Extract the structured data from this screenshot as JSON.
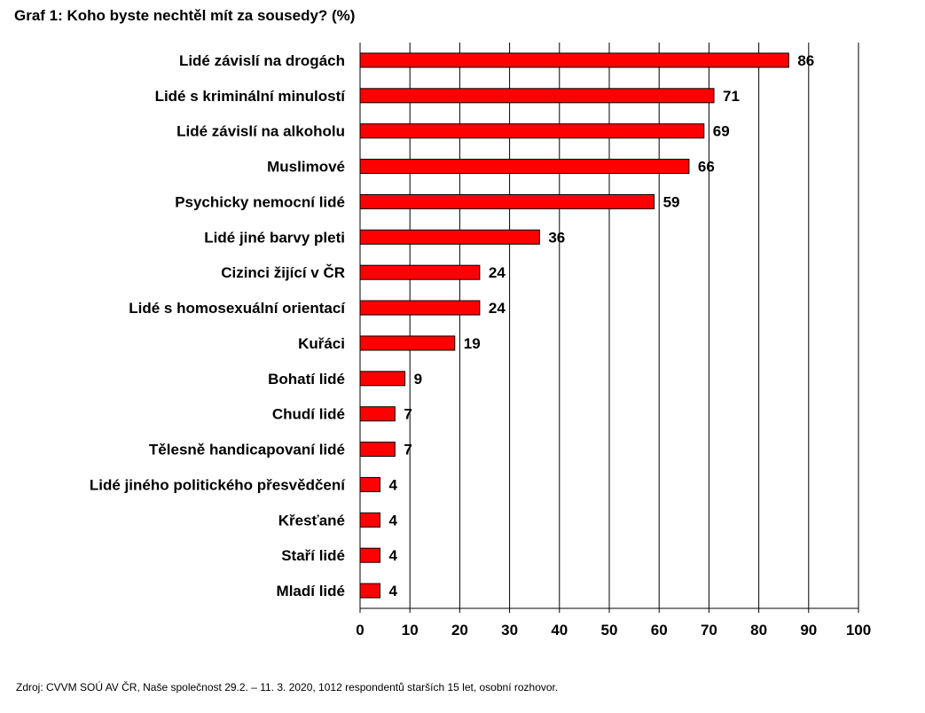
{
  "chart_data": {
    "type": "bar",
    "orientation": "horizontal",
    "title": "Graf 1: Koho byste nechtěl mít za sousedy? (%)",
    "categories": [
      "Lidé závislí na drogách",
      "Lidé s kriminální minulostí",
      "Lidé závislí na alkoholu",
      "Muslimové",
      "Psychicky nemocní lidé",
      "Lidé jiné barvy pleti",
      "Cizinci žijící v ČR",
      "Lidé s homosexuální orientací",
      "Kuřáci",
      "Bohatí lidé",
      "Chudí lidé",
      "Tělesně handicapovaní lidé",
      "Lidé jiného politického přesvědčení",
      "Křesťané",
      "Staří lidé",
      "Mladí lidé"
    ],
    "values": [
      86,
      71,
      69,
      66,
      59,
      36,
      24,
      24,
      19,
      9,
      7,
      7,
      4,
      4,
      4,
      4
    ],
    "xlim": [
      0,
      100
    ],
    "xticks": [
      0,
      10,
      20,
      30,
      40,
      50,
      60,
      70,
      80,
      90,
      100
    ],
    "grid": true,
    "legend": "none",
    "bar_color": "#ff0000",
    "source": "Zdroj: CVVM SOÚ AV ČR, Naše společnost 29.2. – 11. 3. 2020, 1012 respondentů starších 15 let, osobní rozhovor."
  }
}
